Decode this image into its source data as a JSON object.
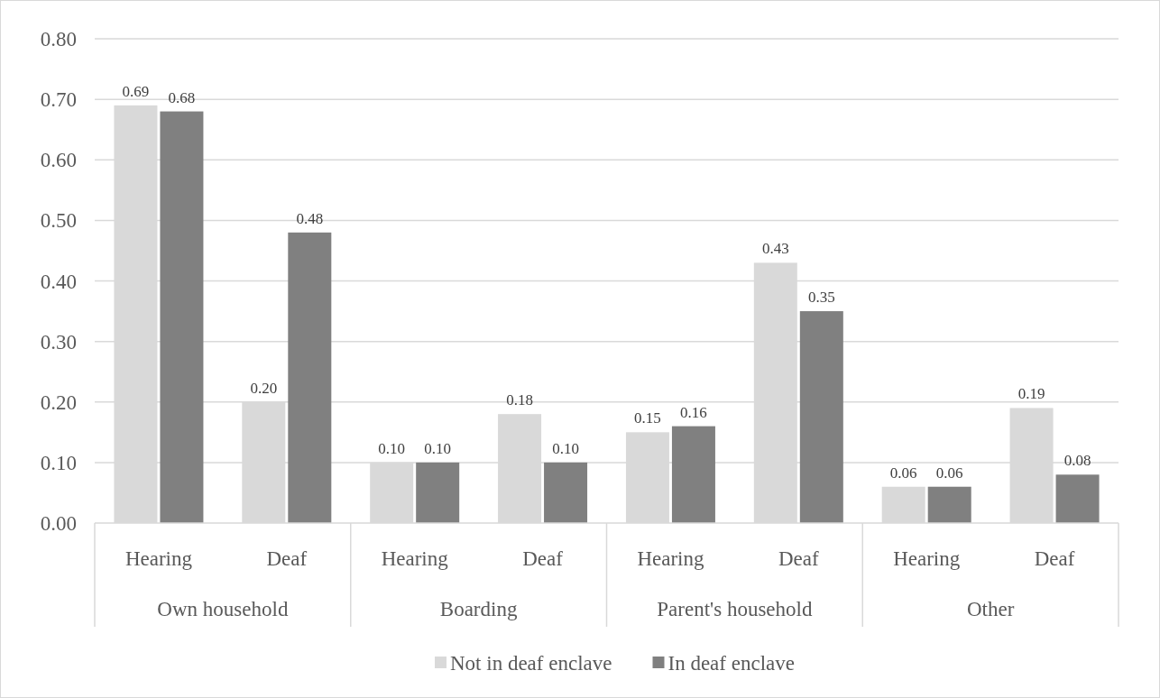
{
  "chart_data": {
    "type": "bar",
    "categories": [
      "Hearing",
      "Deaf",
      "Hearing",
      "Deaf",
      "Hearing",
      "Deaf",
      "Hearing",
      "Deaf"
    ],
    "annotations": [
      "Own household",
      "Boarding",
      "Parent's household",
      "Other"
    ],
    "series": [
      {
        "name": "Not in deaf enclave",
        "color": "#d9d9d9",
        "values": [
          0.69,
          0.2,
          0.1,
          0.18,
          0.15,
          0.43,
          0.06,
          0.19
        ],
        "value_labels": [
          "0.69",
          "0.20",
          "0.10",
          "0.18",
          "0.15",
          "0.43",
          "0.06",
          "0.19"
        ]
      },
      {
        "name": "In deaf enclave",
        "color": "#808080",
        "values": [
          0.68,
          0.48,
          0.1,
          0.1,
          0.16,
          0.35,
          0.06,
          0.08
        ],
        "value_labels": [
          "0.68",
          "0.48",
          "0.10",
          "0.10",
          "0.16",
          "0.35",
          "0.06",
          "0.08"
        ]
      }
    ],
    "ylim": [
      0,
      0.8
    ],
    "yticks": [
      {
        "value": 0,
        "label": "0.00"
      },
      {
        "value": 0.1,
        "label": "0.10"
      },
      {
        "value": 0.2,
        "label": "0.20"
      },
      {
        "value": 0.3,
        "label": "0.30"
      },
      {
        "value": 0.4,
        "label": "0.40"
      },
      {
        "value": 0.5,
        "label": "0.50"
      },
      {
        "value": 0.6,
        "label": "0.60"
      },
      {
        "value": 0.7,
        "label": "0.70"
      },
      {
        "value": 0.8,
        "label": "0.80"
      }
    ],
    "grid": "y",
    "legend": "bottom"
  }
}
